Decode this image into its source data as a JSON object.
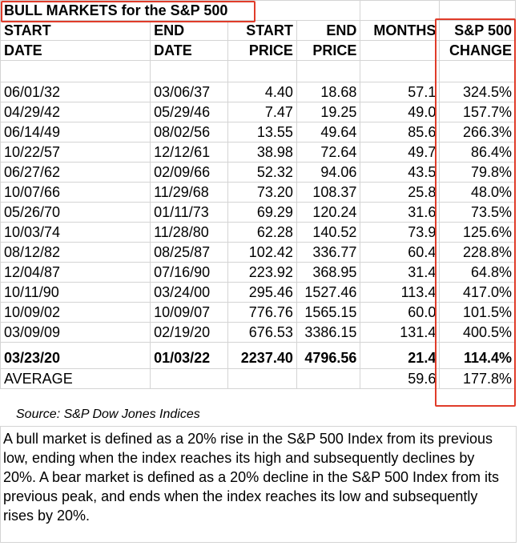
{
  "title": "BULL MARKETS for the S&P 500",
  "headers": {
    "start_date": [
      "START",
      "DATE"
    ],
    "end_date": [
      "END",
      "DATE"
    ],
    "start_price": [
      "START",
      "PRICE"
    ],
    "end_price": [
      "END",
      "PRICE"
    ],
    "months": [
      "MONTHS",
      ""
    ],
    "change": [
      "S&P 500",
      "CHANGE"
    ]
  },
  "rows": [
    [
      "06/01/32",
      "03/06/37",
      "4.40",
      "18.68",
      "57.1",
      "324.5%"
    ],
    [
      "04/29/42",
      "05/29/46",
      "7.47",
      "19.25",
      "49.0",
      "157.7%"
    ],
    [
      "06/14/49",
      "08/02/56",
      "13.55",
      "49.64",
      "85.6",
      "266.3%"
    ],
    [
      "10/22/57",
      "12/12/61",
      "38.98",
      "72.64",
      "49.7",
      "86.4%"
    ],
    [
      "06/27/62",
      "02/09/66",
      "52.32",
      "94.06",
      "43.5",
      "79.8%"
    ],
    [
      "10/07/66",
      "11/29/68",
      "73.20",
      "108.37",
      "25.8",
      "48.0%"
    ],
    [
      "05/26/70",
      "01/11/73",
      "69.29",
      "120.24",
      "31.6",
      "73.5%"
    ],
    [
      "10/03/74",
      "11/28/80",
      "62.28",
      "140.52",
      "73.9",
      "125.6%"
    ],
    [
      "08/12/82",
      "08/25/87",
      "102.42",
      "336.77",
      "60.4",
      "228.8%"
    ],
    [
      "12/04/87",
      "07/16/90",
      "223.92",
      "368.95",
      "31.4",
      "64.8%"
    ],
    [
      "10/11/90",
      "03/24/00",
      "295.46",
      "1527.46",
      "113.4",
      "417.0%"
    ],
    [
      "10/09/02",
      "10/09/07",
      "776.76",
      "1565.15",
      "60.0",
      "101.5%"
    ],
    [
      "03/09/09",
      "02/19/20",
      "676.53",
      "3386.15",
      "131.4",
      "400.5%"
    ]
  ],
  "current": [
    "03/23/20",
    "01/03/22",
    "2237.40",
    "4796.56",
    "21.4",
    "114.4%"
  ],
  "average": {
    "label": "AVERAGE",
    "months": "59.6",
    "change": "177.8%"
  },
  "source": "Source: S&P Dow Jones Indices",
  "note": "A bull market is defined as a 20% rise in the S&P 500 Index from its previous low, ending when the index reaches its high and subsequently declines by 20%.  A bear market is defined as a 20% decline in the S&P 500 Index from its previous peak, and ends when the index reaches its low and subsequently rises by 20%.",
  "colors": {
    "highlight": "#e03c2a",
    "gridline": "#d4d4d4"
  }
}
